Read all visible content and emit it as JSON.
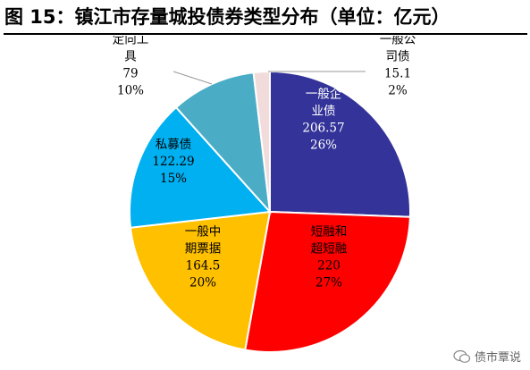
{
  "title": "图 15：镇江市存量城投债券类型分布（单位：亿元）",
  "watermark": "债市覃说",
  "chart_data": {
    "type": "pie",
    "title": "图 15：镇江市存量城投债券类型分布（单位：亿元）",
    "unit": "亿元",
    "slices": [
      {
        "label_lines": [
          "一般企",
          "业债"
        ],
        "value": "206.57",
        "percent": "26%",
        "v": 206.57,
        "color": "#333399",
        "text_color": "#ffffff"
      },
      {
        "label_lines": [
          "短融和",
          "超短融"
        ],
        "value": "220",
        "percent": "27%",
        "v": 220,
        "color": "#ff0000",
        "text_color": "#000000"
      },
      {
        "label_lines": [
          "一般中",
          "期票据"
        ],
        "value": "164.5",
        "percent": "20%",
        "v": 164.5,
        "color": "#ffc000",
        "text_color": "#000000"
      },
      {
        "label_lines": [
          "私募债"
        ],
        "value": "122.29",
        "percent": "15%",
        "v": 122.29,
        "color": "#00b0f0",
        "text_color": "#000000"
      },
      {
        "label_lines": [
          "定向工",
          "具"
        ],
        "value": "79",
        "percent": "10%",
        "v": 79,
        "color": "#4bacc6",
        "text_color": "#000000"
      },
      {
        "label_lines": [
          "一般公",
          "司债"
        ],
        "value": "15.1",
        "percent": "2%",
        "v": 15.1,
        "color": "#f2dcdb",
        "text_color": "#000000"
      }
    ],
    "start_angle_deg": 0,
    "direction": "clockwise",
    "legend": "none"
  }
}
